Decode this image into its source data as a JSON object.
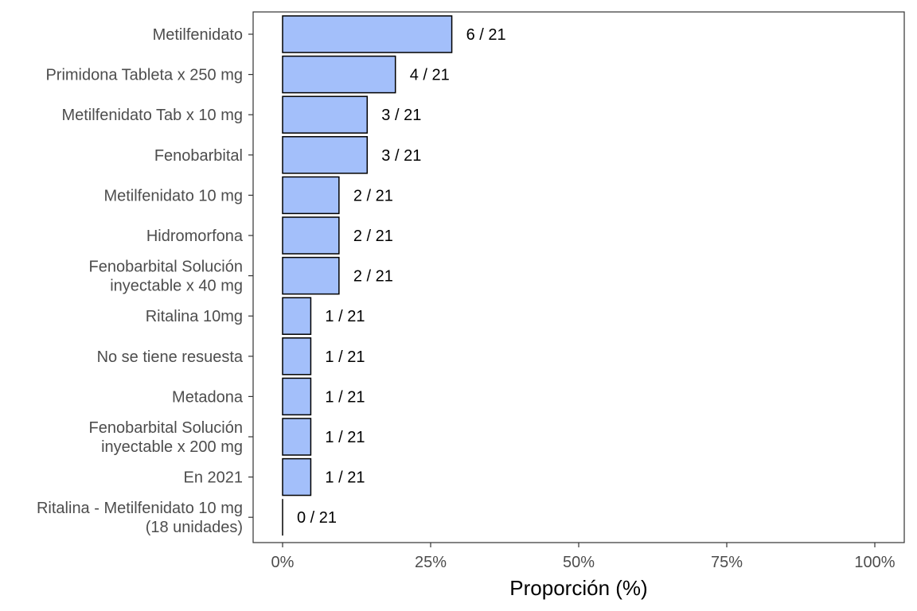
{
  "chart_data": {
    "type": "bar",
    "orientation": "horizontal",
    "categories": [
      [
        "Metilfenidato"
      ],
      [
        "Primidona Tableta x 250 mg"
      ],
      [
        "Metilfenidato Tab x 10 mg"
      ],
      [
        "Fenobarbital"
      ],
      [
        "Metilfenidato 10 mg"
      ],
      [
        "Hidromorfona"
      ],
      [
        "Fenobarbital Solución",
        "inyectable x 40 mg"
      ],
      [
        "Ritalina 10mg"
      ],
      [
        "No se tiene resuesta"
      ],
      [
        "Metadona"
      ],
      [
        "Fenobarbital Solución",
        "inyectable x 200 mg"
      ],
      [
        "En 2021"
      ],
      [
        "Ritalina - Metilfenidato 10 mg",
        "(18 unidades)"
      ]
    ],
    "counts": [
      6,
      4,
      3,
      3,
      2,
      2,
      2,
      1,
      1,
      1,
      1,
      1,
      0
    ],
    "total": 21,
    "data_labels": [
      "6 / 21",
      "4 / 21",
      "3 / 21",
      "3 / 21",
      "2 / 21",
      "2 / 21",
      "2 / 21",
      "1 / 21",
      "1 / 21",
      "1 / 21",
      "1 / 21",
      "1 / 21",
      "0 / 21"
    ],
    "xlabel": "Proporción (%)",
    "xlim": [
      0,
      100
    ],
    "x_ticks": [
      0,
      25,
      50,
      75,
      100
    ],
    "x_tick_labels": [
      "0%",
      "25%",
      "50%",
      "75%",
      "100%"
    ],
    "bar_color": "#a3bffa",
    "bar_border_color": "#000000",
    "grid": false,
    "legend": "none"
  }
}
